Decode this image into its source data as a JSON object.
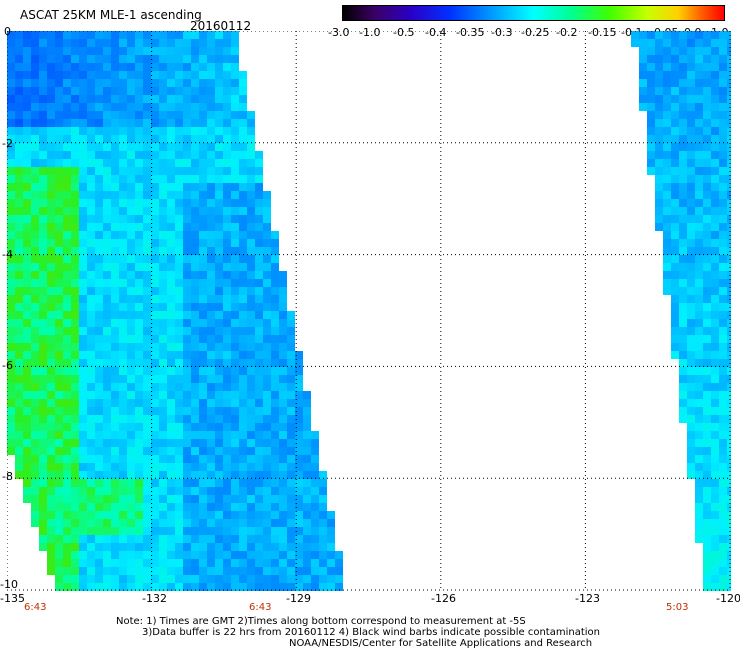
{
  "header": {
    "title": "ASCAT 25KM MLE-1 ascending",
    "date": "20160112"
  },
  "colorbar": {
    "labels": [
      "-3.0",
      "-1.0",
      "-0.5",
      "-0.4",
      "-0.35",
      "-0.3",
      "-0.25",
      "-0.2",
      "-0.15",
      "-0.1",
      "-0.05",
      "0.0",
      "1.0"
    ],
    "colors": [
      "#000000",
      "#3a0060",
      "#2a00c8",
      "#0030ff",
      "#0090ff",
      "#00ffff",
      "#00ff90",
      "#40ff00",
      "#c8ff00",
      "#ffd000",
      "#ff6000",
      "#ff0000"
    ]
  },
  "axes": {
    "lat_labels": [
      "0",
      "-2",
      "-4",
      "-6",
      "-8",
      "-10"
    ],
    "lon_labels": [
      "-135",
      "-132",
      "-129",
      "-126",
      "-123",
      "-120"
    ],
    "lat_range": [
      -10,
      0
    ],
    "lon_range": [
      -135,
      -120
    ],
    "grid": true
  },
  "swath_times": [
    "6:43",
    "6:43",
    "5:03"
  ],
  "notes": {
    "line1": "Note: 1) Times are GMT 2)Times along bottom correspond to measurement at -5S",
    "line2": "3)Data buffer is 22 hrs from 20160112 4) Black wind barbs indicate possible contamination",
    "line3": "NOAA/NESDIS/Center for Satellite Applications and Research"
  }
}
